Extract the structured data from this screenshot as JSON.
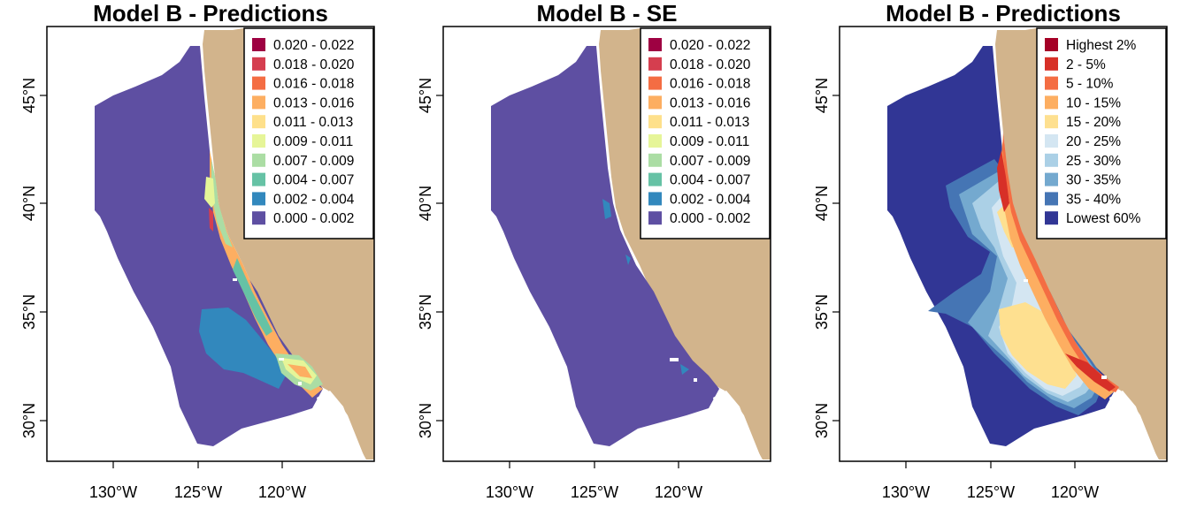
{
  "colors": {
    "land": "#d2b48c",
    "ocean_background": "#ffffff",
    "white_patches": "#ffffff",
    "frame": "#000000"
  },
  "panels": [
    {
      "title": "Model  B - Predictions",
      "x_ticks": [
        "130°W",
        "125°W",
        "120°W"
      ],
      "y_ticks": [
        "45°N",
        "40°N",
        "35°N",
        "30°N"
      ],
      "legend": [
        {
          "label": "0.020 - 0.022",
          "color": "#9e0142"
        },
        {
          "label": "0.018 - 0.020",
          "color": "#d53e4f"
        },
        {
          "label": "0.016 - 0.018",
          "color": "#f46d43"
        },
        {
          "label": "0.013 - 0.016",
          "color": "#fdae61"
        },
        {
          "label": "0.011 - 0.013",
          "color": "#fee08b"
        },
        {
          "label": "0.009 - 0.011",
          "color": "#e6f598"
        },
        {
          "label": "0.007 - 0.009",
          "color": "#abdda4"
        },
        {
          "label": "0.004 - 0.007",
          "color": "#66c2a5"
        },
        {
          "label": "0.002 - 0.004",
          "color": "#3288bd"
        },
        {
          "label": "0.000 - 0.002",
          "color": "#5e4fa2"
        }
      ]
    },
    {
      "title": "Model  B - SE",
      "x_ticks": [
        "130°W",
        "125°W",
        "120°W"
      ],
      "y_ticks": [
        "45°N",
        "40°N",
        "35°N",
        "30°N"
      ],
      "legend": [
        {
          "label": "0.020 - 0.022",
          "color": "#9e0142"
        },
        {
          "label": "0.018 - 0.020",
          "color": "#d53e4f"
        },
        {
          "label": "0.016 - 0.018",
          "color": "#f46d43"
        },
        {
          "label": "0.013 - 0.016",
          "color": "#fdae61"
        },
        {
          "label": "0.011 - 0.013",
          "color": "#fee08b"
        },
        {
          "label": "0.009 - 0.011",
          "color": "#e6f598"
        },
        {
          "label": "0.007 - 0.009",
          "color": "#abdda4"
        },
        {
          "label": "0.004 - 0.007",
          "color": "#66c2a5"
        },
        {
          "label": "0.002 - 0.004",
          "color": "#3288bd"
        },
        {
          "label": "0.000 - 0.002",
          "color": "#5e4fa2"
        }
      ]
    },
    {
      "title": "Model  B - Predictions",
      "x_ticks": [
        "130°W",
        "125°W",
        "120°W"
      ],
      "y_ticks": [
        "45°N",
        "40°N",
        "35°N",
        "30°N"
      ],
      "legend": [
        {
          "label": "Highest 2%",
          "color": "#a50026"
        },
        {
          "label": "2 - 5%",
          "color": "#d73027"
        },
        {
          "label": "5 - 10%",
          "color": "#f46d43"
        },
        {
          "label": "10 - 15%",
          "color": "#fdae61"
        },
        {
          "label": "15 - 20%",
          "color": "#fee090"
        },
        {
          "label": "20 - 25%",
          "color": "#d4e6f2"
        },
        {
          "label": "25 - 30%",
          "color": "#abd0e6"
        },
        {
          "label": "30 - 35%",
          "color": "#74a9cf"
        },
        {
          "label": "35 - 40%",
          "color": "#4575b4"
        },
        {
          "label": "Lowest 60%",
          "color": "#313695"
        }
      ]
    }
  ]
}
